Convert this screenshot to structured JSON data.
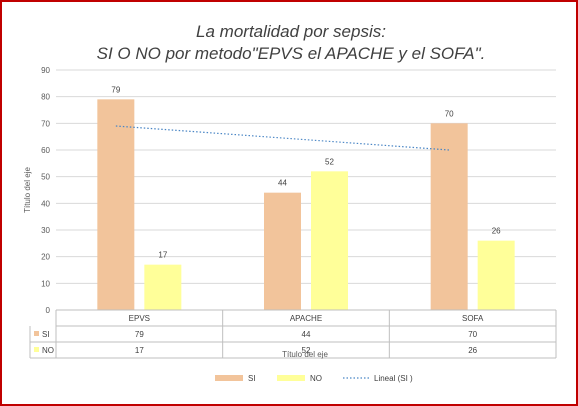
{
  "chart_data": {
    "type": "bar",
    "title_lines": [
      "La mortalidad por sepsis:",
      "SI O NO por metodo\"EPVS el APACHE y el SOFA\"."
    ],
    "categories": [
      "EPVS",
      "APACHE",
      "SOFA"
    ],
    "series": [
      {
        "name": "SI",
        "values": [
          79,
          44,
          70
        ],
        "color": "#f2c49b"
      },
      {
        "name": "NO",
        "values": [
          17,
          52,
          26
        ],
        "color": "#ffff99"
      }
    ],
    "trendline": {
      "name": "Lineal (SI )",
      "from": 69,
      "to": 60,
      "color": "#4a86c5"
    },
    "ylim": [
      0,
      90
    ],
    "yticks": [
      0,
      10,
      20,
      30,
      40,
      50,
      60,
      70,
      80,
      90
    ],
    "ylabel": "Título del eje",
    "xlabel": "Título del eje",
    "grid": true,
    "data_table": true,
    "legend_position": "bottom"
  }
}
